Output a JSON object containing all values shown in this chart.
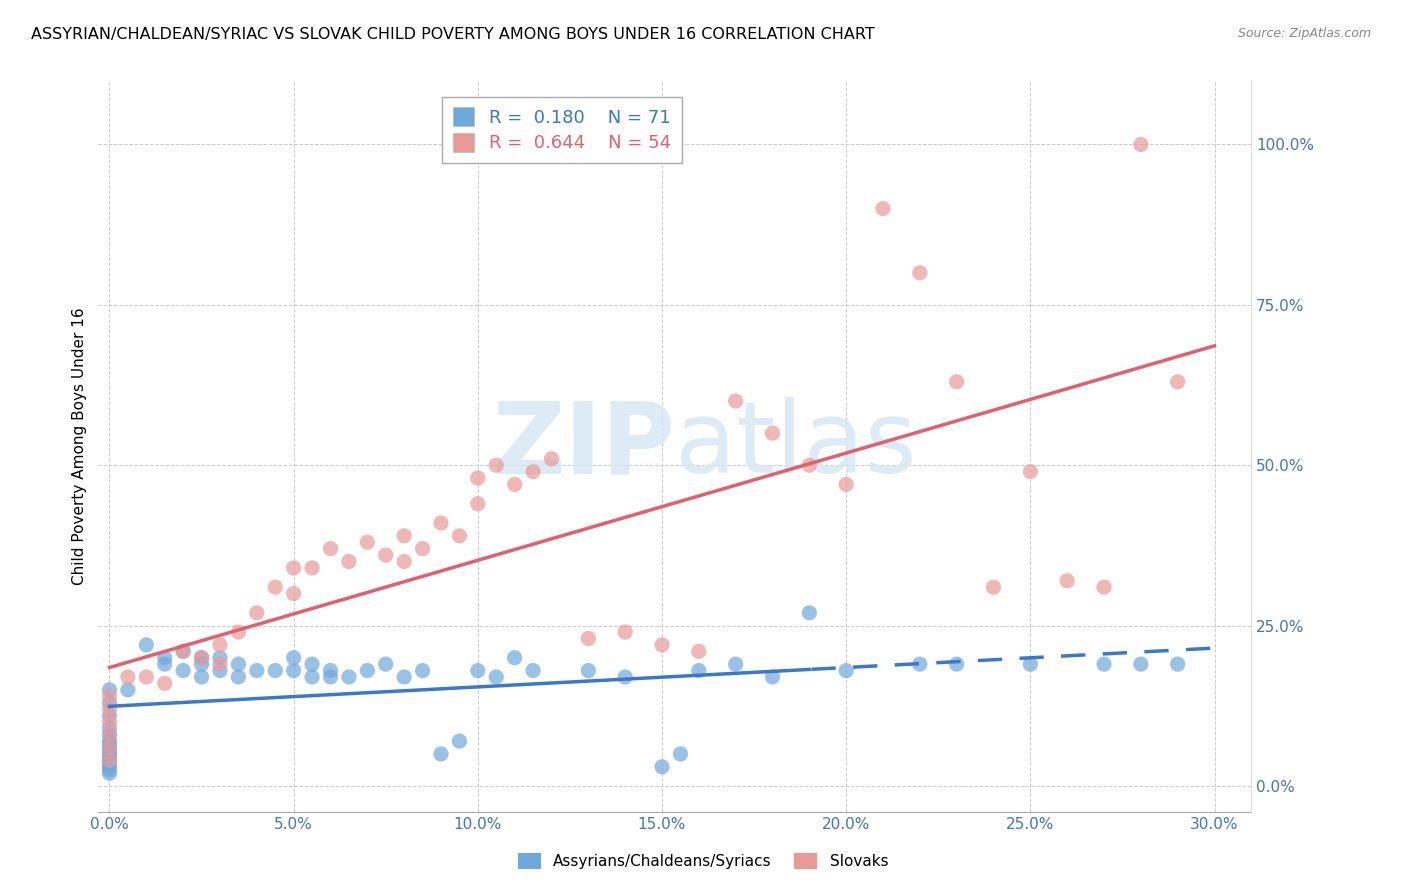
{
  "title": "ASSYRIAN/CHALDEAN/SYRIAC VS SLOVAK CHILD POVERTY AMONG BOYS UNDER 16 CORRELATION CHART",
  "source": "Source: ZipAtlas.com",
  "ylabel": "Child Poverty Among Boys Under 16",
  "xlabel_ticks": [
    "0.0%",
    "5.0%",
    "10.0%",
    "15.0%",
    "20.0%",
    "25.0%",
    "30.0%"
  ],
  "xlabel_vals": [
    0.0,
    5.0,
    10.0,
    15.0,
    20.0,
    25.0,
    30.0
  ],
  "ylabel_ticks": [
    "0.0%",
    "25.0%",
    "50.0%",
    "75.0%",
    "100.0%"
  ],
  "ylabel_vals": [
    0.0,
    25.0,
    50.0,
    75.0,
    100.0
  ],
  "xlim": [
    -0.3,
    31.0
  ],
  "ylim": [
    -4,
    110
  ],
  "legend_R_blue": "0.180",
  "legend_N_blue": "71",
  "legend_R_pink": "0.644",
  "legend_N_pink": "54",
  "blue_color": "#6fa8dc",
  "pink_color": "#ea9999",
  "reg_blue_color": "#3a78c9",
  "reg_pink_color": "#e06070",
  "watermark_color": "#dce8f5",
  "blue_scatter": [
    [
      0.0,
      15.0
    ],
    [
      0.0,
      13.0
    ],
    [
      0.0,
      11.0
    ],
    [
      0.0,
      9.0
    ],
    [
      0.0,
      8.0
    ],
    [
      0.0,
      7.0
    ],
    [
      0.0,
      6.5
    ],
    [
      0.0,
      6.0
    ],
    [
      0.0,
      5.5
    ],
    [
      0.0,
      5.0
    ],
    [
      0.0,
      4.5
    ],
    [
      0.0,
      4.0
    ],
    [
      0.0,
      3.5
    ],
    [
      0.0,
      3.0
    ],
    [
      0.0,
      2.5
    ],
    [
      0.0,
      2.0
    ],
    [
      0.5,
      15.0
    ],
    [
      1.0,
      22.0
    ],
    [
      1.5,
      20.0
    ],
    [
      1.5,
      19.0
    ],
    [
      2.0,
      21.0
    ],
    [
      2.0,
      18.0
    ],
    [
      2.5,
      20.0
    ],
    [
      2.5,
      19.0
    ],
    [
      2.5,
      17.0
    ],
    [
      3.0,
      20.0
    ],
    [
      3.0,
      18.0
    ],
    [
      3.5,
      19.0
    ],
    [
      3.5,
      17.0
    ],
    [
      4.0,
      18.0
    ],
    [
      4.5,
      18.0
    ],
    [
      5.0,
      20.0
    ],
    [
      5.0,
      18.0
    ],
    [
      5.5,
      19.0
    ],
    [
      5.5,
      17.0
    ],
    [
      6.0,
      18.0
    ],
    [
      6.0,
      17.0
    ],
    [
      6.5,
      17.0
    ],
    [
      7.0,
      18.0
    ],
    [
      7.5,
      19.0
    ],
    [
      8.0,
      17.0
    ],
    [
      8.5,
      18.0
    ],
    [
      9.0,
      5.0
    ],
    [
      9.5,
      7.0
    ],
    [
      10.0,
      18.0
    ],
    [
      10.5,
      17.0
    ],
    [
      11.0,
      20.0
    ],
    [
      11.5,
      18.0
    ],
    [
      13.0,
      18.0
    ],
    [
      14.0,
      17.0
    ],
    [
      15.0,
      3.0
    ],
    [
      15.5,
      5.0
    ],
    [
      16.0,
      18.0
    ],
    [
      17.0,
      19.0
    ],
    [
      18.0,
      17.0
    ],
    [
      19.0,
      27.0
    ],
    [
      20.0,
      18.0
    ],
    [
      22.0,
      19.0
    ],
    [
      23.0,
      19.0
    ],
    [
      25.0,
      19.0
    ],
    [
      27.0,
      19.0
    ],
    [
      28.0,
      19.0
    ],
    [
      29.0,
      19.0
    ]
  ],
  "pink_scatter": [
    [
      0.0,
      14.0
    ],
    [
      0.0,
      12.0
    ],
    [
      0.0,
      10.0
    ],
    [
      0.0,
      8.0
    ],
    [
      0.0,
      6.0
    ],
    [
      0.0,
      4.0
    ],
    [
      0.5,
      17.0
    ],
    [
      1.0,
      17.0
    ],
    [
      1.5,
      16.0
    ],
    [
      2.0,
      21.0
    ],
    [
      2.5,
      20.0
    ],
    [
      3.0,
      22.0
    ],
    [
      3.0,
      19.0
    ],
    [
      3.5,
      24.0
    ],
    [
      4.0,
      27.0
    ],
    [
      4.5,
      31.0
    ],
    [
      5.0,
      34.0
    ],
    [
      5.0,
      30.0
    ],
    [
      5.5,
      34.0
    ],
    [
      6.0,
      37.0
    ],
    [
      6.5,
      35.0
    ],
    [
      7.0,
      38.0
    ],
    [
      7.5,
      36.0
    ],
    [
      8.0,
      39.0
    ],
    [
      8.0,
      35.0
    ],
    [
      8.5,
      37.0
    ],
    [
      9.0,
      41.0
    ],
    [
      9.5,
      39.0
    ],
    [
      10.0,
      48.0
    ],
    [
      10.0,
      44.0
    ],
    [
      10.5,
      50.0
    ],
    [
      11.0,
      47.0
    ],
    [
      11.5,
      49.0
    ],
    [
      12.0,
      51.0
    ],
    [
      13.0,
      23.0
    ],
    [
      14.0,
      24.0
    ],
    [
      15.0,
      22.0
    ],
    [
      16.0,
      21.0
    ],
    [
      17.0,
      60.0
    ],
    [
      18.0,
      55.0
    ],
    [
      19.0,
      50.0
    ],
    [
      20.0,
      47.0
    ],
    [
      21.0,
      90.0
    ],
    [
      22.0,
      80.0
    ],
    [
      23.0,
      63.0
    ],
    [
      24.0,
      31.0
    ],
    [
      25.0,
      49.0
    ],
    [
      26.0,
      32.0
    ],
    [
      27.0,
      31.0
    ],
    [
      28.0,
      100.0
    ],
    [
      29.0,
      63.0
    ]
  ]
}
